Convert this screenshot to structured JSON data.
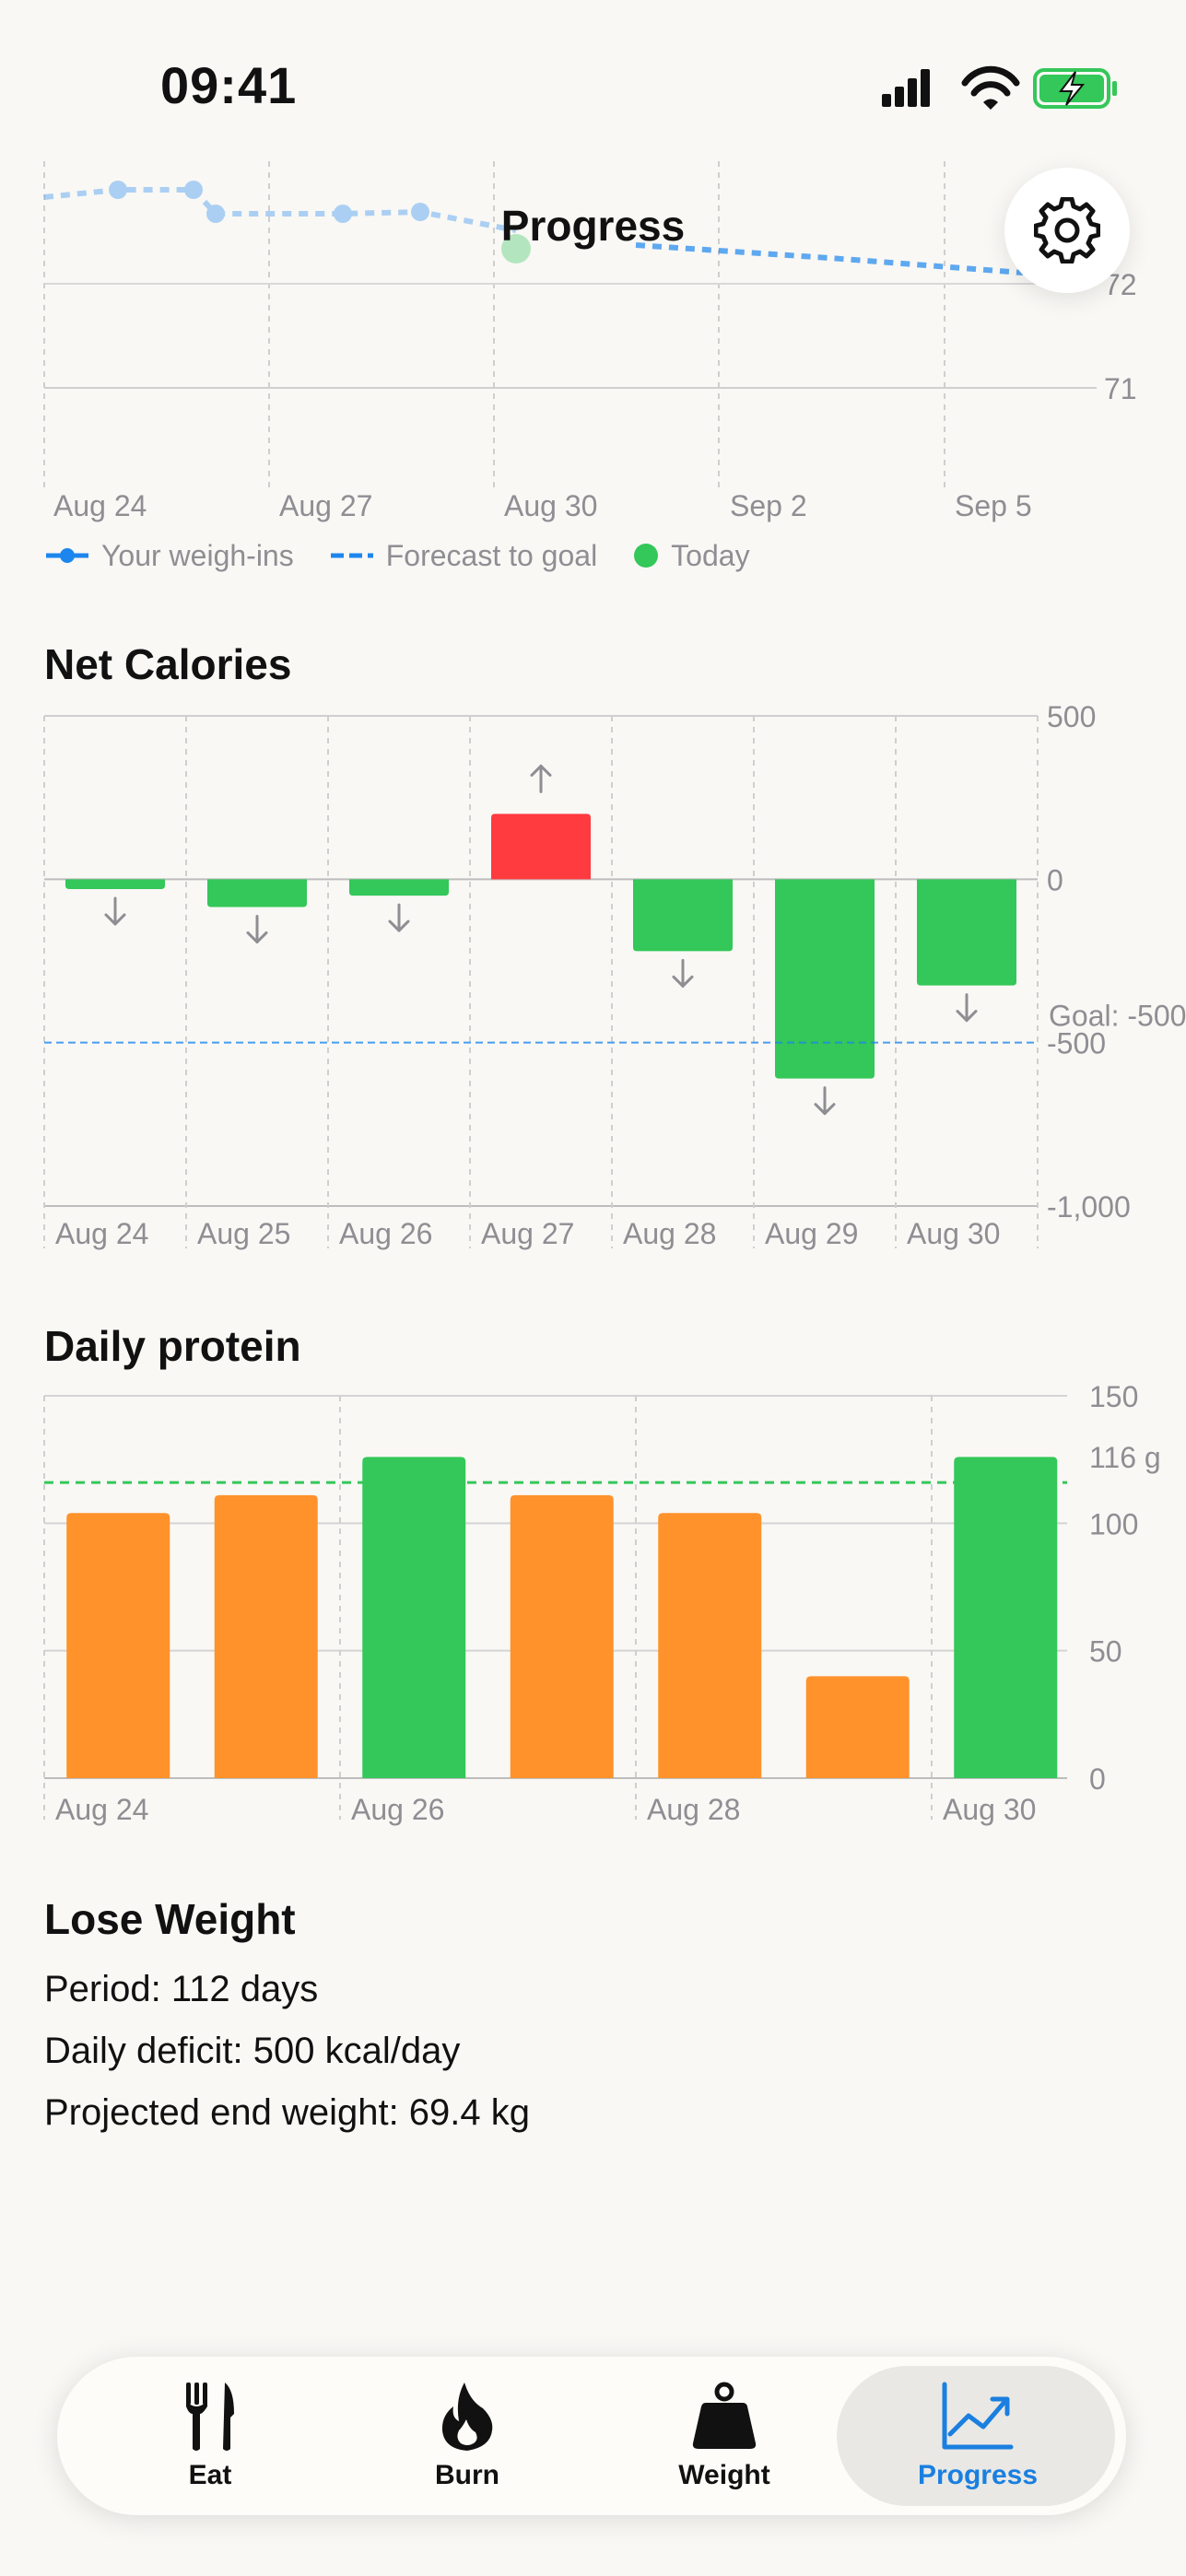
{
  "status_bar": {
    "time": "09:41"
  },
  "header": {
    "title": "Progress"
  },
  "weight_chart": {
    "y_tick_labels": [
      "72",
      "71"
    ],
    "x_tick_labels": [
      "Aug 24",
      "Aug 27",
      "Aug 30",
      "Sep 2",
      "Sep 5"
    ],
    "legend": [
      "Your weigh-ins",
      "Forecast to goal",
      "Today"
    ]
  },
  "net_calories": {
    "title": "Net Calories",
    "goal_label": "Goal: -500"
  },
  "daily_protein": {
    "title": "Daily protein"
  },
  "lose_weight": {
    "title": "Lose Weight",
    "period": "Period: 112 days",
    "deficit": "Daily deficit: 500 kcal/day",
    "projected": "Projected end weight: 69.4 kg"
  },
  "tabs": [
    {
      "label": "Eat"
    },
    {
      "label": "Burn"
    },
    {
      "label": "Weight"
    },
    {
      "label": "Progress"
    }
  ],
  "colors": {
    "green": "#34c759",
    "red": "#ff3b40",
    "orange": "#ff922b",
    "blue": "#1c86ee",
    "accent": "#1a7fe0"
  },
  "chart_data": [
    {
      "type": "bar",
      "title": "Net Calories",
      "categories": [
        "Aug 24",
        "Aug 25",
        "Aug 26",
        "Aug 27",
        "Aug 28",
        "Aug 29",
        "Aug 30"
      ],
      "values": [
        -30,
        -85,
        -50,
        200,
        -220,
        -610,
        -325
      ],
      "ylim": [
        -1000,
        500
      ],
      "y_ticks": [
        500,
        0,
        -500,
        -1000
      ],
      "y_tick_labels": [
        "500",
        "0",
        "-500",
        "-1,000"
      ],
      "goal": -500,
      "grid": true
    },
    {
      "type": "bar",
      "title": "Daily protein",
      "categories": [
        "Aug 24",
        "Aug 25",
        "Aug 26",
        "Aug 27",
        "Aug 28",
        "Aug 29",
        "Aug 30"
      ],
      "x_tick_labels": [
        "Aug 24",
        "Aug 26",
        "Aug 28",
        "Aug 30"
      ],
      "values": [
        104,
        111,
        126,
        111,
        104,
        40,
        126
      ],
      "ylim": [
        0,
        150
      ],
      "y_ticks": [
        150,
        100,
        50,
        0
      ],
      "target": 116,
      "target_label": "116 g",
      "grid": true
    }
  ]
}
